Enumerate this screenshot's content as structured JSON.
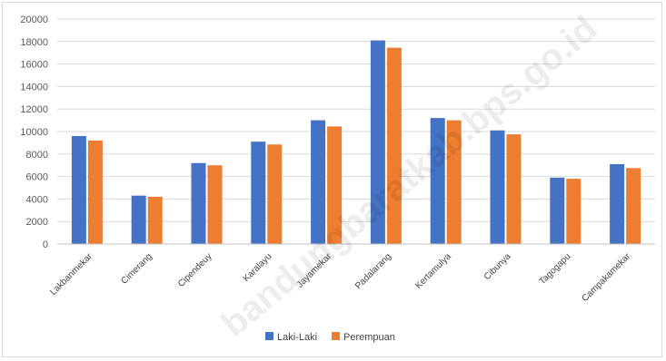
{
  "chart_data": {
    "type": "bar",
    "title": "",
    "xlabel": "",
    "ylabel": "",
    "categories": [
      "Lakbanmekar",
      "Cimerang",
      "Cipendeuy",
      "Karalayu",
      "Jayamekar",
      "Padalarang",
      "Kertamulya",
      "Cibunya",
      "Tagogapu",
      "Campakamekar"
    ],
    "series": [
      {
        "name": "Laki-Laki",
        "color": "#4472c4",
        "values": [
          9600,
          4300,
          7200,
          9100,
          11000,
          18100,
          11200,
          10100,
          5900,
          7100
        ]
      },
      {
        "name": "Perempuan",
        "color": "#ed7d31",
        "values": [
          9200,
          4200,
          7000,
          8850,
          10450,
          17450,
          11000,
          9750,
          5800,
          6750
        ]
      }
    ],
    "ylim": [
      0,
      20000
    ],
    "yticks": [
      0,
      2000,
      4000,
      6000,
      8000,
      10000,
      12000,
      14000,
      16000,
      18000,
      20000
    ],
    "grid": true,
    "legend_position": "bottom",
    "watermark": "bandungbaratkab.bps.go.id"
  }
}
